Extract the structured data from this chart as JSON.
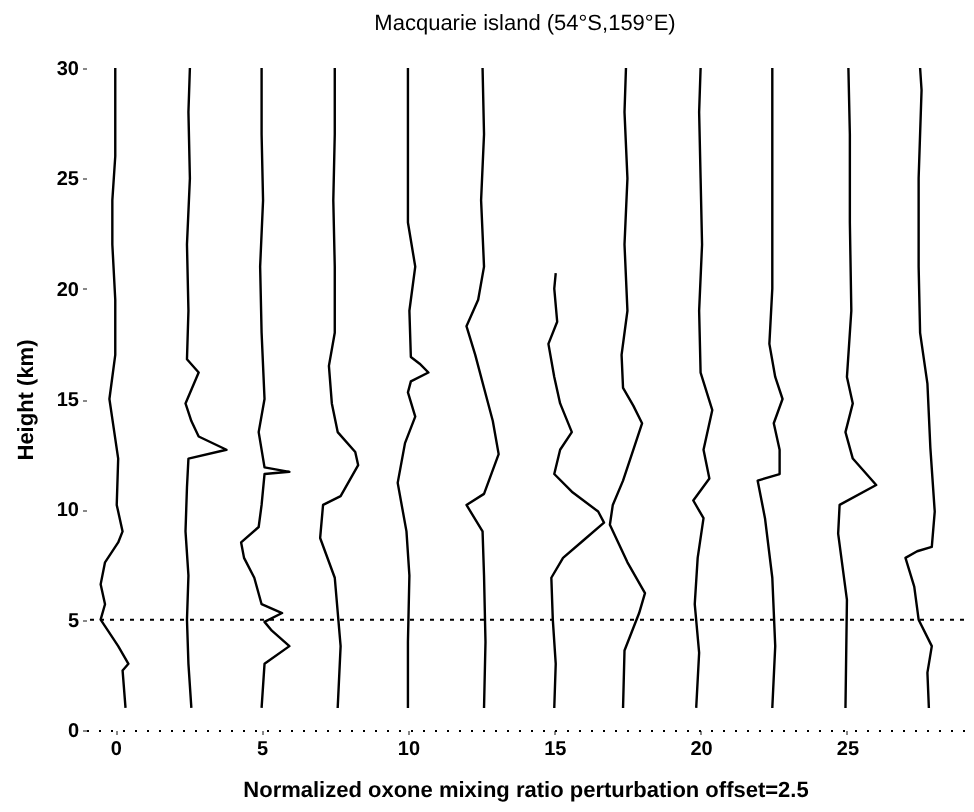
{
  "chart_data": {
    "type": "line",
    "title": "Macquarie island (54°S,159°E)",
    "xlabel": "Normalized oxone mixing ratio perturbation    offset=2.5",
    "ylabel": "Height (km)",
    "xlim": [
      -1,
      29
    ],
    "xticks": [
      0,
      5,
      10,
      15,
      20,
      25
    ],
    "ylim": [
      0,
      30
    ],
    "yticks": [
      0,
      5,
      10,
      15,
      20,
      25,
      30
    ],
    "grid": false,
    "legend": false,
    "line_style": "solid",
    "ref_lines": [
      {
        "axis": "y",
        "value": 5,
        "line_style": "dotted",
        "color": "#000000"
      }
    ],
    "series": [
      {
        "color": "#000000",
        "x": [
          0.35,
          0.25,
          0.45,
          0.1,
          -0.25,
          -0.5,
          -0.35,
          -0.5,
          -0.35,
          0.1,
          0.25,
          0.05,
          0.1,
          -0.1,
          -0.2,
          0,
          0,
          -0.1,
          -0.1,
          0,
          0,
          0
        ],
        "values": [
          1,
          2.7,
          3,
          3.8,
          4.5,
          5,
          5.7,
          6.6,
          7.6,
          8.5,
          9,
          10.2,
          12.3,
          14.1,
          15,
          17,
          19.5,
          22,
          24,
          26,
          28,
          30
        ]
      },
      {
        "color": "#000000",
        "x": [
          2.6,
          2.5,
          2.45,
          2.5,
          2.4,
          2.45,
          2.5,
          3.8,
          2.85,
          2.6,
          2.4,
          2.85,
          2.45,
          2.5,
          2.45,
          2.55,
          2.5,
          2.55
        ],
        "values": [
          1,
          3,
          5,
          7,
          9,
          11,
          12.3,
          12.7,
          13.3,
          14,
          14.8,
          16.2,
          16.8,
          19,
          22,
          25,
          28,
          30
        ]
      },
      {
        "color": "#000000",
        "x": [
          5,
          5.1,
          5.95,
          5.35,
          5.1,
          5.7,
          5,
          4.75,
          4.4,
          4.3,
          4.9,
          5,
          5.1,
          5.95,
          5.1,
          4.9,
          5.1,
          5,
          4.95,
          5.05,
          5,
          5
        ],
        "values": [
          1,
          3,
          3.8,
          4.5,
          4.9,
          5.3,
          5.7,
          6.9,
          7.8,
          8.5,
          9.2,
          10.2,
          11.6,
          11.7,
          11.9,
          13.5,
          15,
          18,
          21,
          24,
          27,
          30
        ]
      },
      {
        "color": "#000000",
        "x": [
          7.6,
          7.7,
          7.5,
          7.0,
          7.1,
          7.7,
          8.3,
          8.2,
          7.6,
          7.4,
          7.3,
          7.5,
          7.5,
          7.45,
          7.5,
          7.5
        ],
        "values": [
          1,
          3.8,
          6.9,
          8.7,
          10.2,
          10.6,
          12,
          12.6,
          13.5,
          14.8,
          16.5,
          18,
          21,
          24,
          27,
          30
        ]
      },
      {
        "color": "#000000",
        "x": [
          10,
          10,
          10.05,
          9.95,
          9.65,
          9.9,
          10.25,
          10,
          10.1,
          10.7,
          10.4,
          10.1,
          10.05,
          10.25,
          10,
          10,
          10
        ],
        "values": [
          1,
          4,
          7,
          9,
          11.2,
          13,
          14.2,
          15.3,
          15.8,
          16.2,
          16.6,
          16.9,
          19,
          21,
          23,
          26,
          30
        ]
      },
      {
        "color": "#000000",
        "x": [
          12.6,
          12.65,
          12.6,
          12.55,
          12.0,
          12.6,
          13.1,
          12.9,
          12.6,
          12.3,
          12.0,
          12.4,
          12.6,
          12.5,
          12.6,
          12.55
        ],
        "values": [
          1,
          4,
          7,
          9,
          10.2,
          10.7,
          12.5,
          14,
          15.5,
          17,
          18.3,
          19.5,
          21,
          24,
          27,
          30
        ]
      },
      {
        "color": "#000000",
        "x": [
          15,
          15.05,
          14.95,
          14.9,
          15.3,
          16,
          16.7,
          16.5,
          15.6,
          15,
          15.2,
          15.6,
          15.2,
          15,
          14.8,
          15.1,
          15,
          15.05
        ],
        "values": [
          1,
          3,
          5,
          6.9,
          7.8,
          8.6,
          9.4,
          9.9,
          10.8,
          11.6,
          12.7,
          13.5,
          14.8,
          16,
          17.5,
          18.5,
          20,
          20.7
        ]
      },
      {
        "color": "#000000",
        "x": [
          17.35,
          17.4,
          17.9,
          18.1,
          17.5,
          16.9,
          17.0,
          17.35,
          17.7,
          18.0,
          17.7,
          17.35,
          17.3,
          17.5,
          17.4,
          17.5,
          17.4,
          17.45
        ],
        "values": [
          1,
          3.6,
          5.3,
          6.2,
          7.6,
          9.3,
          10.2,
          11.3,
          12.7,
          13.9,
          14.7,
          15.5,
          17,
          19,
          22,
          25,
          28,
          30
        ]
      },
      {
        "color": "#000000",
        "x": [
          19.85,
          19.95,
          19.8,
          19.9,
          20.1,
          19.75,
          20.3,
          20.1,
          20.4,
          20,
          19.95,
          20.05,
          20,
          19.95,
          20
        ],
        "values": [
          1,
          3.5,
          5.7,
          7.8,
          9.6,
          10.4,
          11.4,
          12.7,
          14.5,
          16.2,
          19,
          22,
          25,
          28,
          30
        ]
      },
      {
        "color": "#000000",
        "x": [
          22.45,
          22.55,
          22.45,
          22.2,
          21.95,
          22.7,
          22.7,
          22.5,
          22.8,
          22.55,
          22.35,
          22.45,
          22.45,
          22.45
        ],
        "values": [
          1,
          3.8,
          6.9,
          9.6,
          11.3,
          11.6,
          12.7,
          13.9,
          15,
          16,
          17.5,
          20,
          24,
          30
        ]
      },
      {
        "color": "#000000",
        "x": [
          24.95,
          25.0,
          24.7,
          24.75,
          26.0,
          25.2,
          24.95,
          25.2,
          25.0,
          25.15,
          25.1,
          25.1,
          25.05
        ],
        "values": [
          1,
          5.9,
          8.9,
          10.2,
          11.1,
          12.3,
          13.5,
          14.8,
          16,
          19,
          23,
          27,
          30
        ]
      },
      {
        "color": "#000000",
        "x": [
          27.8,
          27.75,
          27.9,
          27.45,
          27.3,
          27.0,
          27.4,
          27.9,
          28.0,
          27.85,
          27.75,
          27.5,
          27.45,
          27.45,
          27.55,
          27.5
        ],
        "values": [
          1,
          2.6,
          3.8,
          5,
          6.5,
          7.8,
          8.1,
          8.3,
          9.9,
          12.8,
          15.7,
          18,
          21,
          25,
          29,
          30
        ]
      }
    ]
  }
}
